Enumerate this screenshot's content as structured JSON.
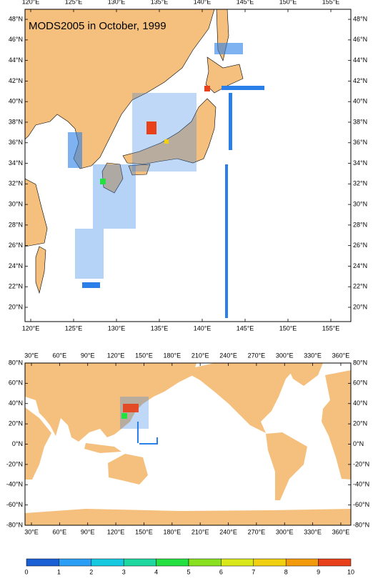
{
  "title": "MODS2005 in October, 1999",
  "regional_map": {
    "xticks": [
      {
        "value": 120,
        "label": "120°E"
      },
      {
        "value": 125,
        "label": "125°E"
      },
      {
        "value": 130,
        "label": "130°E"
      },
      {
        "value": 135,
        "label": "135°E"
      },
      {
        "value": 140,
        "label": "140°E"
      },
      {
        "value": 145,
        "label": "145°E"
      },
      {
        "value": 150,
        "label": "150°E"
      },
      {
        "value": 155,
        "label": "155°E"
      }
    ],
    "yticks": [
      {
        "value": 20,
        "label": "20°N"
      },
      {
        "value": 22,
        "label": "22°N"
      },
      {
        "value": 24,
        "label": "24°N"
      },
      {
        "value": 26,
        "label": "26°N"
      },
      {
        "value": 28,
        "label": "28°N"
      },
      {
        "value": 30,
        "label": "30°N"
      },
      {
        "value": 32,
        "label": "32°N"
      },
      {
        "value": 34,
        "label": "34°N"
      },
      {
        "value": 36,
        "label": "36°N"
      },
      {
        "value": 38,
        "label": "38°N"
      },
      {
        "value": 40,
        "label": "40°N"
      },
      {
        "value": 42,
        "label": "42°N"
      },
      {
        "value": 44,
        "label": "44°N"
      },
      {
        "value": 46,
        "label": "46°N"
      },
      {
        "value": 48,
        "label": "48°N"
      }
    ]
  },
  "global_map": {
    "xticks": [
      {
        "value": 30,
        "label": "30°E"
      },
      {
        "value": 60,
        "label": "60°E"
      },
      {
        "value": 90,
        "label": "90°E"
      },
      {
        "value": 120,
        "label": "120°E"
      },
      {
        "value": 150,
        "label": "150°E"
      },
      {
        "value": 180,
        "label": "180°E"
      },
      {
        "value": 210,
        "label": "210°E"
      },
      {
        "value": 240,
        "label": "240°E"
      },
      {
        "value": 270,
        "label": "270°E"
      },
      {
        "value": 300,
        "label": "300°E"
      },
      {
        "value": 330,
        "label": "330°E"
      },
      {
        "value": 360,
        "label": "360°E"
      }
    ],
    "yticks": [
      {
        "value": 80,
        "label": "80°N"
      },
      {
        "value": 60,
        "label": "60°N"
      },
      {
        "value": 40,
        "label": "40°N"
      },
      {
        "value": 20,
        "label": "20°N"
      },
      {
        "value": 0,
        "label": "0°N"
      },
      {
        "value": -20,
        "label": "-20°N"
      },
      {
        "value": -40,
        "label": "-40°N"
      },
      {
        "value": -60,
        "label": "-60°N"
      },
      {
        "value": -80,
        "label": "-80°N"
      }
    ]
  },
  "colorbar": {
    "levels": [
      0,
      1,
      2,
      3,
      4,
      5,
      6,
      7,
      8,
      9,
      10
    ],
    "colors": [
      "#1a5fd4",
      "#2a9df4",
      "#16c8e0",
      "#1ed8a0",
      "#24e040",
      "#88e020",
      "#d8e81a",
      "#f0d010",
      "#f39a0c",
      "#e8401a"
    ]
  }
}
